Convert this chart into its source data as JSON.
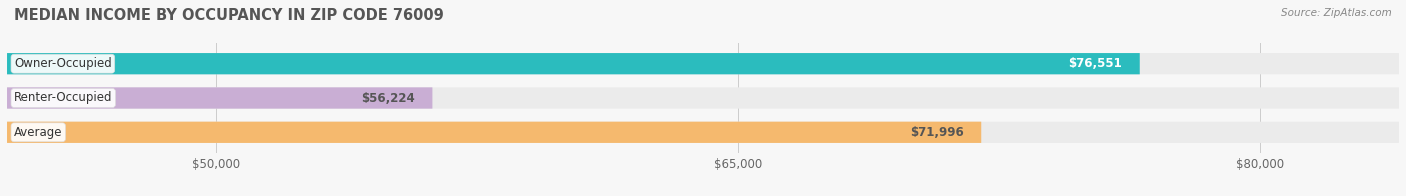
{
  "title": "MEDIAN INCOME BY OCCUPANCY IN ZIP CODE 76009",
  "source": "Source: ZipAtlas.com",
  "categories": [
    "Owner-Occupied",
    "Renter-Occupied",
    "Average"
  ],
  "values": [
    76551,
    56224,
    71996
  ],
  "bar_colors": [
    "#2bbcbe",
    "#c9aed4",
    "#f5b96e"
  ],
  "bar_bg_color": "#ebebeb",
  "value_labels": [
    "$76,551",
    "$56,224",
    "$71,996"
  ],
  "value_label_colors": [
    "#ffffff",
    "#555555",
    "#555555"
  ],
  "x_ticks": [
    50000,
    65000,
    80000
  ],
  "x_tick_labels": [
    "$50,000",
    "$65,000",
    "$80,000"
  ],
  "xlim_min": 44000,
  "xlim_max": 84000,
  "background_color": "#f7f7f7",
  "bar_height": 0.62,
  "title_fontsize": 10.5,
  "label_fontsize": 8.5,
  "tick_fontsize": 8.5,
  "source_fontsize": 7.5
}
